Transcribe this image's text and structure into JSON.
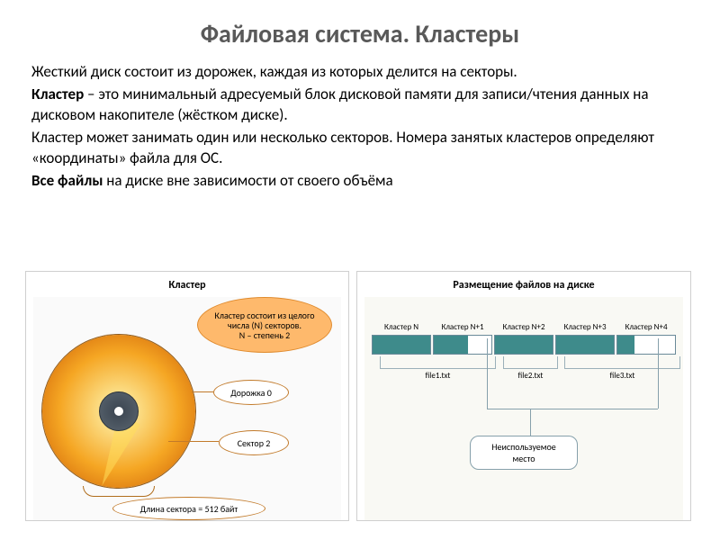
{
  "title": "Файловая система. Кластеры",
  "text": {
    "p1": "Жесткий диск состоит из дорожек, каждая из которых делится на секторы.",
    "p2_bold": "Кластер",
    "p2_rest": " – это минимальный адресуемый блок дисковой памяти для записи/чтения данных на дисковом накопителе (жёстком диске).",
    "p3": "Кластер может занимать один или несколько секторов. Номера занятых кластеров определяют «координаты» файла для ОС.",
    "p4_bold": "Все файлы",
    "p4_rest": " на диске вне зависимости от своего объёма"
  },
  "left_panel": {
    "title": "Кластер",
    "callout_top": {
      "l1": "Кластер состоит из целого",
      "l2": "числа (N) секторов.",
      "l3": "N – степень 2"
    },
    "track_label": "Дорожка 0",
    "sector_label": "Сектор 2",
    "sector_length": "Длина сектора = 512 байт",
    "colors": {
      "disk_outer": "#d9740f",
      "disk_mid": "#f5a623",
      "disk_inner": "#4a5560",
      "callout_orange": "#feb96c",
      "callout_border": "#c27a2a"
    }
  },
  "right_panel": {
    "title": "Размещение файлов на диске",
    "clusters": [
      {
        "label": "Кластер N",
        "fill_pct": 100
      },
      {
        "label": "Кластер N+1",
        "fill_pct": 60
      },
      {
        "label": "Кластер N+2",
        "fill_pct": 100
      },
      {
        "label": "Кластер N+3",
        "fill_pct": 100
      },
      {
        "label": "Кластер N+4",
        "fill_pct": 30
      }
    ],
    "files": [
      "file1.txt",
      "file2.txt",
      "file3.txt"
    ],
    "unused_label": "Неиспользуемое\nместо",
    "colors": {
      "fill": "#3e8b8b",
      "border": "#6a8a99",
      "bg": "#f9f9f4"
    }
  }
}
